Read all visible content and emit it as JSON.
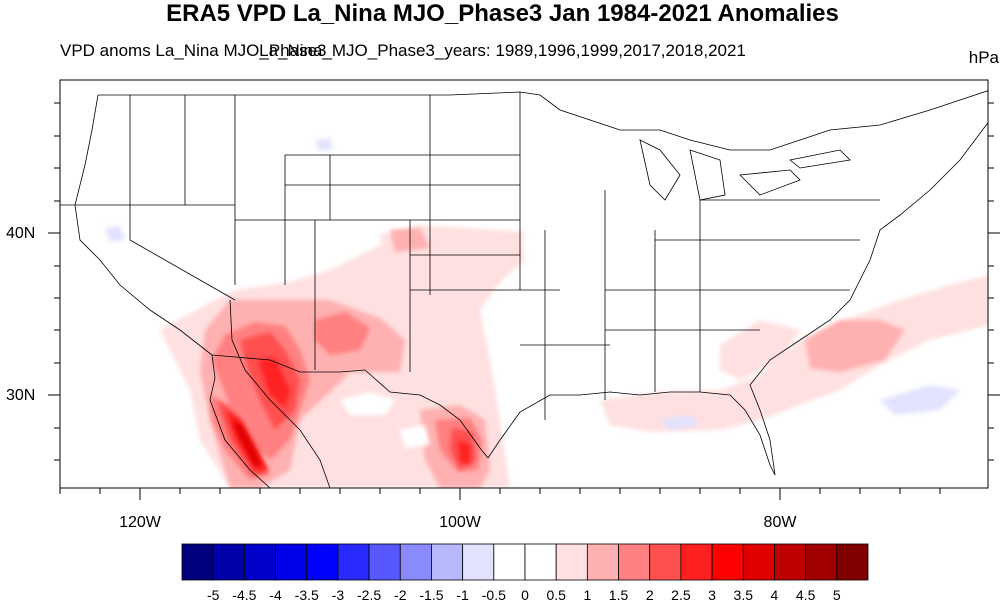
{
  "map": {
    "title": "ERA5 VPD La_Nina MJO_Phase3 Jan 1984-2021 Anomalies",
    "left_string": "VPD anoms La_Nina MJO_Phase3",
    "center_string": "La_Nina_MJO_Phase3_years: 1989,1996,1999,2017,2018,2021",
    "right_string": "hPa",
    "lat_labels": [
      "40N",
      "30N"
    ],
    "lon_labels": [
      "120W",
      "100W",
      "80W"
    ],
    "colorbar": {
      "labels": [
        "-5",
        "-4.5",
        "-4",
        "-3.5",
        "-3",
        "-2.5",
        "-2",
        "-1.5",
        "-1",
        "-0.5",
        "0",
        "0.5",
        "1",
        "1.5",
        "2",
        "2.5",
        "3",
        "3.5",
        "4",
        "4.5",
        "5"
      ],
      "colors": [
        "#00007f",
        "#0000a8",
        "#0000cc",
        "#0000e8",
        "#0000ff",
        "#2a2aff",
        "#5858ff",
        "#8a8aff",
        "#b8b8ff",
        "#e2e2ff",
        "#ffffff",
        "#ffffff",
        "#ffe0e0",
        "#ffb0b0",
        "#ff8080",
        "#ff5050",
        "#ff2020",
        "#ff0000",
        "#e00000",
        "#c00000",
        "#a00000",
        "#800000"
      ]
    }
  }
}
